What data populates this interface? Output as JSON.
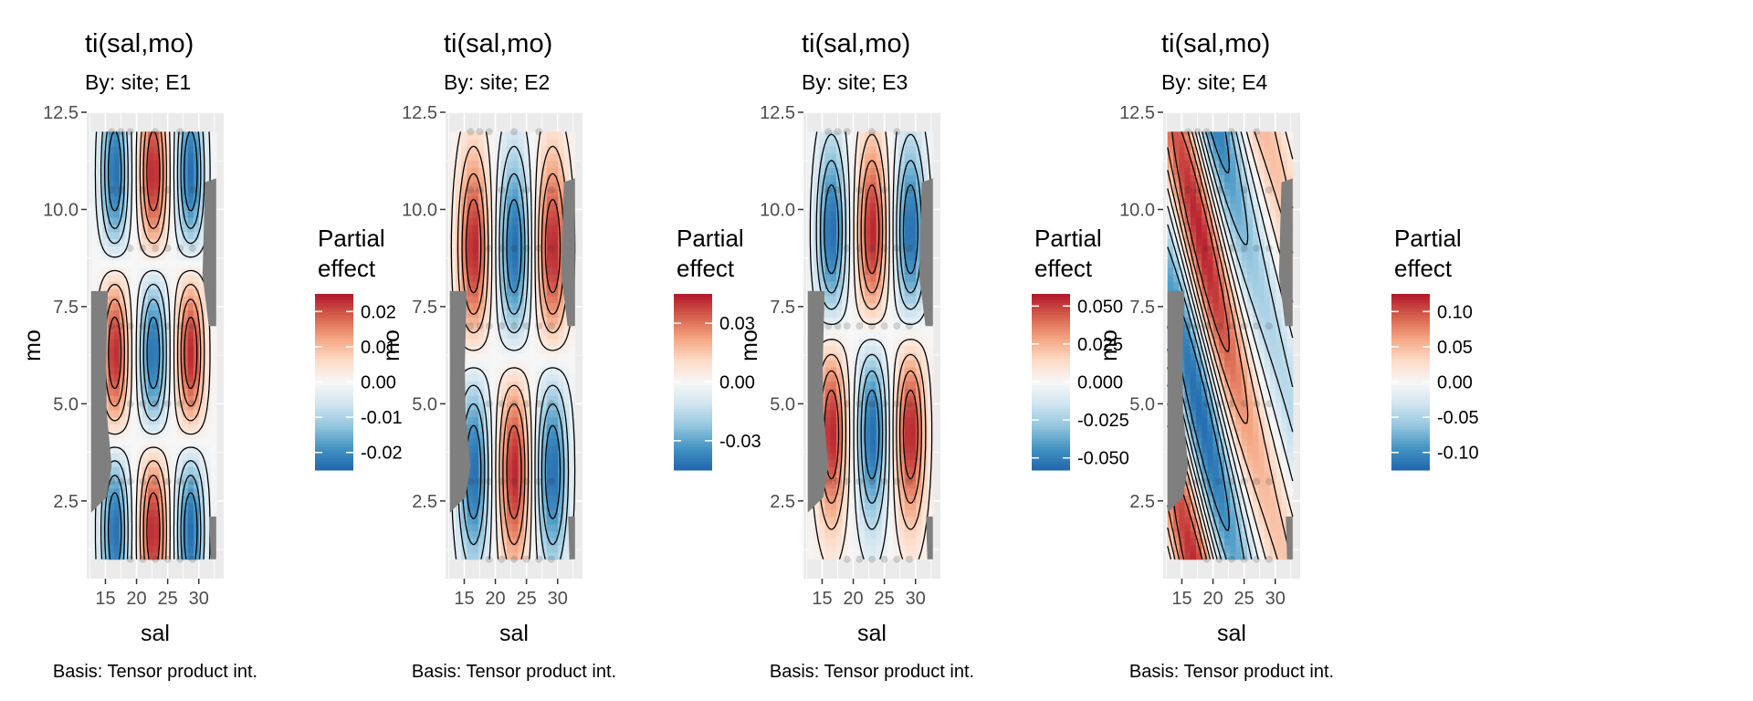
{
  "figure": {
    "colors": {
      "panel_bg": "#ebebeb",
      "grid": "#ffffff",
      "mask": "#7f7f7f",
      "contour": "#000000",
      "point": "#333333"
    },
    "colorscale": [
      "#2166ac",
      "#4393c3",
      "#92c5de",
      "#d1e5f0",
      "#f7f7f7",
      "#fddbc7",
      "#f4a582",
      "#d6604d",
      "#b2182b"
    ]
  },
  "chart_data": [
    {
      "type": "heatmap",
      "title": "ti(sal,mo)",
      "subtitle": "By: site; E1",
      "xlabel": "sal",
      "ylabel": "mo",
      "caption": "Basis: Tensor product int.",
      "xlim": [
        12,
        34
      ],
      "ylim": [
        0.5,
        12.5
      ],
      "xticks": [
        15,
        20,
        25,
        30
      ],
      "yticks": [
        2.5,
        5.0,
        7.5,
        10.0,
        12.5
      ],
      "yticklabels": [
        "2.5",
        "5.0",
        "7.5",
        "10.0",
        "12.5"
      ],
      "data_range": {
        "sal": [
          12.7,
          32.8
        ],
        "mo": [
          1,
          12
        ]
      },
      "legend": {
        "title": [
          "Partial",
          "effect"
        ],
        "position": "right",
        "range": [
          -0.025,
          0.025
        ],
        "ticks": [
          -0.02,
          -0.01,
          0.0,
          0.01,
          0.02
        ],
        "ticklabels": [
          "-0.02",
          "-0.01",
          "0.00",
          "0.01",
          "0.02"
        ]
      },
      "surface": {
        "form": "grid",
        "sal_nodes": [
          16.5,
          22.7,
          28.7
        ],
        "mo_nodes": [
          1.8,
          6.3,
          10.9
        ],
        "sign": -1,
        "amplitude": 0.024,
        "sal_width": 2.1,
        "mo_width": 2.2
      }
    },
    {
      "type": "heatmap",
      "title": "ti(sal,mo)",
      "subtitle": "By: site; E2",
      "xlabel": "sal",
      "ylabel": "mo",
      "caption": "Basis: Tensor product int.",
      "xlim": [
        12,
        34
      ],
      "ylim": [
        0.5,
        12.5
      ],
      "xticks": [
        15,
        20,
        25,
        30
      ],
      "yticks": [
        2.5,
        5.0,
        7.5,
        10.0,
        12.5
      ],
      "yticklabels": [
        "2.5",
        "5.0",
        "7.5",
        "10.0",
        "12.5"
      ],
      "data_range": {
        "sal": [
          12.7,
          32.8
        ],
        "mo": [
          1,
          12
        ]
      },
      "legend": {
        "title": [
          "Partial",
          "effect"
        ],
        "position": "right",
        "range": [
          -0.045,
          0.045
        ],
        "ticks": [
          -0.03,
          0.0,
          0.03
        ],
        "ticklabels": [
          "-0.03",
          "0.00",
          "0.03"
        ]
      },
      "surface": {
        "form": "grid",
        "sal_nodes": [
          16.5,
          23.0,
          29.2
        ],
        "mo_nodes": [
          3.3,
          9.0
        ],
        "sign": -1,
        "amplitude": 0.043,
        "sal_width": 2.4,
        "mo_width": 2.5
      }
    },
    {
      "type": "heatmap",
      "title": "ti(sal,mo)",
      "subtitle": "By: site; E3",
      "xlabel": "sal",
      "ylabel": "mo",
      "caption": "Basis: Tensor product int.",
      "xlim": [
        12,
        34
      ],
      "ylim": [
        0.5,
        12.5
      ],
      "xticks": [
        15,
        20,
        25,
        30
      ],
      "yticks": [
        2.5,
        5.0,
        7.5,
        10.0,
        12.5
      ],
      "yticklabels": [
        "2.5",
        "5.0",
        "7.5",
        "10.0",
        "12.5"
      ],
      "data_range": {
        "sal": [
          12.7,
          32.8
        ],
        "mo": [
          1,
          12
        ]
      },
      "legend": {
        "title": [
          "Partial",
          "effect"
        ],
        "position": "right",
        "range": [
          -0.058,
          0.058
        ],
        "ticks": [
          -0.05,
          -0.025,
          0.0,
          0.025,
          0.05
        ],
        "ticklabels": [
          "-0.050",
          "-0.025",
          "0.000",
          "0.025",
          "0.050"
        ]
      },
      "surface": {
        "form": "grid",
        "sal_nodes": [
          16.5,
          23.0,
          29.2
        ],
        "mo_nodes": [
          4.3,
          9.4
        ],
        "sign": 1,
        "amplitude": 0.056,
        "sal_width": 2.3,
        "mo_width": 2.4
      }
    },
    {
      "type": "heatmap",
      "title": "ti(sal,mo)",
      "subtitle": "By: site; E4",
      "xlabel": "sal",
      "ylabel": "mo",
      "caption": "Basis: Tensor product int.",
      "xlim": [
        12,
        34
      ],
      "ylim": [
        0.5,
        12.5
      ],
      "xticks": [
        15,
        20,
        25,
        30
      ],
      "yticks": [
        2.5,
        5.0,
        7.5,
        10.0,
        12.5
      ],
      "yticklabels": [
        "2.5",
        "5.0",
        "7.5",
        "10.0",
        "12.5"
      ],
      "data_range": {
        "sal": [
          12.7,
          32.8
        ],
        "mo": [
          1,
          12
        ]
      },
      "legend": {
        "title": [
          "Partial",
          "effect"
        ],
        "position": "right",
        "range": [
          -0.125,
          0.125
        ],
        "ticks": [
          -0.1,
          -0.05,
          0.0,
          0.05,
          0.1
        ],
        "ticklabels": [
          "-0.10",
          "-0.05",
          "0.00",
          "0.05",
          "0.10"
        ]
      },
      "surface": {
        "form": "diagonal",
        "amplitude": 0.12,
        "mo_period": 9.2
      }
    }
  ]
}
